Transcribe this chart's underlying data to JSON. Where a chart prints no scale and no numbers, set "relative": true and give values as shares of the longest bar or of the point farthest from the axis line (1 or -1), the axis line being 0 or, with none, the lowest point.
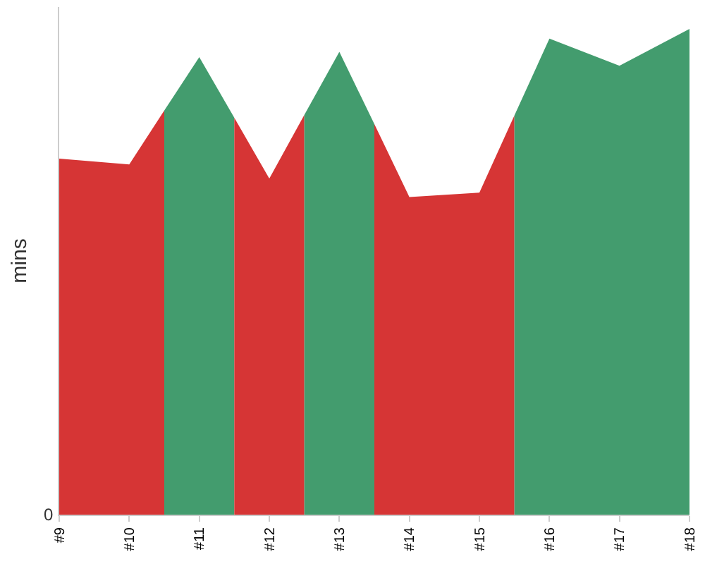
{
  "chart_data": {
    "type": "area",
    "ylabel": "mins",
    "relative": true,
    "annotations": [
      "0"
    ],
    "xlim": [
      9,
      18
    ],
    "xticks": [
      {
        "value": 9,
        "label": "#9"
      },
      {
        "value": 10,
        "label": "#10"
      },
      {
        "value": 11,
        "label": "#11"
      },
      {
        "value": 12,
        "label": "#12"
      },
      {
        "value": 13,
        "label": "#13"
      },
      {
        "value": 14,
        "label": "#14"
      },
      {
        "value": 15,
        "label": "#15"
      },
      {
        "value": 16,
        "label": "#16"
      },
      {
        "value": 17,
        "label": "#17"
      },
      {
        "value": 18,
        "label": "#18"
      }
    ],
    "series": [
      {
        "color": "#d63535",
        "x": [
          9,
          10,
          10.5
        ],
        "values": [
          0.733,
          0.721,
          0.832
        ]
      },
      {
        "color": "#439c6e",
        "x": [
          10.5,
          11,
          11.5
        ],
        "values": [
          0.832,
          0.942,
          0.817
        ]
      },
      {
        "color": "#d63535",
        "x": [
          11.5,
          12,
          12.5
        ],
        "values": [
          0.817,
          0.692,
          0.823
        ]
      },
      {
        "color": "#439c6e",
        "x": [
          12.5,
          13,
          13.5
        ],
        "values": [
          0.823,
          0.953,
          0.804
        ]
      },
      {
        "color": "#d63535",
        "x": [
          13.5,
          14,
          15,
          15.5
        ],
        "values": [
          0.804,
          0.654,
          0.663,
          0.822
        ]
      },
      {
        "color": "#439c6e",
        "x": [
          15.5,
          16,
          17,
          18
        ],
        "values": [
          0.822,
          0.98,
          0.924,
          1
        ]
      }
    ]
  }
}
